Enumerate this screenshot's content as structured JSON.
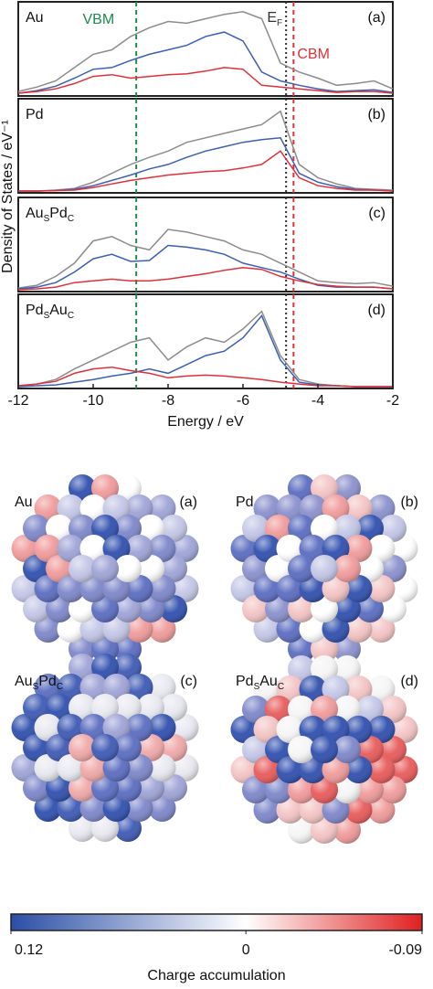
{
  "chart_data": [
    {
      "type": "line",
      "label": [
        {
          "text": "Au"
        }
      ],
      "panel": "(a)",
      "ylabel": "Density of States / eV⁻¹",
      "xlim": [
        -12,
        -2
      ],
      "ylim": [
        0,
        10
      ],
      "x": [
        -12,
        -11.5,
        -11,
        -10.5,
        -10,
        -9.5,
        -9,
        -8.5,
        -8,
        -7.5,
        -7,
        -6.5,
        -6,
        -5.5,
        -5,
        -4.5,
        -4,
        -3.5,
        -3,
        -2.5,
        -2
      ],
      "series": [
        {
          "color": "#8c8c8c",
          "values": [
            0.3,
            0.8,
            1.5,
            3,
            4.5,
            5,
            6.5,
            7.5,
            8.2,
            8,
            8.5,
            9,
            9.3,
            8.5,
            3.5,
            2.5,
            1.8,
            1,
            1.2,
            1.5,
            0.6
          ]
        },
        {
          "color": "#3a5fb5",
          "values": [
            0.1,
            0.4,
            0.9,
            1.8,
            2.8,
            3,
            3.8,
            4.5,
            5,
            5.5,
            6.5,
            7,
            6,
            2.5,
            1.5,
            1,
            0.6,
            0.3,
            0.4,
            0.5,
            0.2
          ]
        },
        {
          "color": "#e0303a",
          "values": [
            0.1,
            0.3,
            0.6,
            1.2,
            2,
            2.2,
            1.8,
            2,
            2.2,
            2.3,
            2.6,
            3,
            2.8,
            1,
            0.8,
            0.6,
            0.4,
            0.2,
            0.3,
            0.3,
            0.1
          ]
        }
      ],
      "vlines": [
        {
          "x": -8.85,
          "color": "#1f8a4c",
          "dash": "5,4",
          "label": [
            {
              "text": "VBM"
            }
          ]
        },
        {
          "x": -4.85,
          "color": "#333333",
          "dash": "2,3",
          "label": [
            {
              "text": "E"
            },
            {
              "text": "F",
              "sub": true
            }
          ]
        },
        {
          "x": -4.65,
          "color": "#e0303a",
          "dash": "5,4",
          "label": [
            {
              "text": "CBM"
            }
          ]
        }
      ]
    },
    {
      "type": "line",
      "label": [
        {
          "text": "Pd"
        }
      ],
      "panel": "(b)",
      "xlim": [
        -12,
        -2
      ],
      "ylim": [
        0,
        10
      ],
      "x": [
        -12,
        -11.5,
        -11,
        -10.5,
        -10,
        -9.5,
        -9,
        -8.5,
        -8,
        -7.5,
        -7,
        -6.5,
        -6,
        -5.5,
        -5,
        -4.5,
        -4,
        -3.5,
        -3,
        -2.5,
        -2
      ],
      "series": [
        {
          "color": "#8c8c8c",
          "values": [
            0,
            0,
            0.1,
            0.3,
            1,
            2,
            3,
            3.8,
            4.5,
            5.5,
            6,
            6.5,
            7,
            7.5,
            9,
            3,
            1.5,
            0.8,
            0.3,
            0.2,
            0.1
          ]
        },
        {
          "color": "#3a5fb5",
          "values": [
            0,
            0,
            0.05,
            0.2,
            0.6,
            1.2,
            1.8,
            2.5,
            3,
            3.8,
            4.5,
            5,
            5.5,
            5.8,
            6,
            2,
            1,
            0.5,
            0.2,
            0.1,
            0
          ]
        },
        {
          "color": "#e0303a",
          "values": [
            0,
            0,
            0.05,
            0.1,
            0.4,
            0.8,
            1.2,
            1.5,
            1.8,
            2,
            2.2,
            2.3,
            2.6,
            3,
            4.5,
            1.5,
            0.6,
            0.3,
            0.1,
            0.1,
            0
          ]
        }
      ],
      "vlines": [
        {
          "x": -8.85,
          "color": "#1f8a4c",
          "dash": "5,4"
        },
        {
          "x": -4.85,
          "color": "#333333",
          "dash": "2,3"
        },
        {
          "x": -4.65,
          "color": "#e0303a",
          "dash": "5,4"
        }
      ]
    },
    {
      "type": "line",
      "label": [
        {
          "text": "Au"
        },
        {
          "text": "S",
          "sub": true
        },
        {
          "text": "Pd"
        },
        {
          "text": "C",
          "sub": true
        }
      ],
      "panel": "(c)",
      "xlim": [
        -12,
        -2
      ],
      "ylim": [
        0,
        10
      ],
      "x": [
        -12,
        -11.5,
        -11,
        -10.5,
        -10,
        -9.5,
        -9,
        -8.5,
        -8,
        -7.5,
        -7,
        -6.5,
        -6,
        -5.5,
        -5,
        -4.5,
        -4,
        -3.5,
        -3,
        -2.5,
        -2
      ],
      "series": [
        {
          "color": "#8c8c8c",
          "values": [
            0.2,
            0.5,
            1.5,
            3,
            5.5,
            6,
            5,
            4.5,
            6.8,
            6.5,
            6,
            5.5,
            4.5,
            4,
            3,
            2,
            1,
            0.8,
            0.7,
            0.8,
            0.4
          ]
        },
        {
          "color": "#3a5fb5",
          "values": [
            0.1,
            0.3,
            0.8,
            2,
            3.5,
            4,
            3.2,
            3.3,
            5,
            4.8,
            4.5,
            4,
            3,
            2.5,
            2,
            1.2,
            0.5,
            0.3,
            0.3,
            0.3,
            0.1
          ]
        },
        {
          "color": "#e0303a",
          "values": [
            0,
            0.1,
            0.3,
            0.8,
            1,
            1.2,
            1,
            1,
            1.2,
            1.5,
            1.8,
            2.2,
            2.5,
            2.3,
            1.5,
            1,
            0.6,
            0.4,
            0.3,
            0.3,
            0.1
          ]
        }
      ],
      "vlines": [
        {
          "x": -8.85,
          "color": "#1f8a4c",
          "dash": "5,4"
        },
        {
          "x": -4.85,
          "color": "#333333",
          "dash": "2,3"
        },
        {
          "x": -4.65,
          "color": "#e0303a",
          "dash": "5,4"
        }
      ]
    },
    {
      "type": "line",
      "label": [
        {
          "text": "Pd"
        },
        {
          "text": "S",
          "sub": true
        },
        {
          "text": "Au"
        },
        {
          "text": "C",
          "sub": true
        }
      ],
      "panel": "(d)",
      "xlim": [
        -12,
        -2
      ],
      "ylim": [
        0,
        10
      ],
      "xticks": [
        -12,
        -10,
        -8,
        -6,
        -4,
        -2
      ],
      "xlabel": "Energy / eV",
      "x": [
        -12,
        -11.5,
        -11,
        -10.5,
        -10,
        -9.5,
        -9,
        -8.5,
        -8,
        -7.5,
        -7,
        -6.5,
        -6,
        -5.5,
        -5,
        -4.5,
        -4,
        -3.5,
        -3,
        -2.5,
        -2
      ],
      "series": [
        {
          "color": "#8c8c8c",
          "values": [
            0.1,
            0.3,
            0.8,
            2,
            3,
            4,
            5,
            5.5,
            3,
            4.5,
            5.5,
            5,
            6.5,
            8.5,
            3.5,
            0.8,
            0.3,
            0.1,
            0,
            0,
            0
          ]
        },
        {
          "color": "#3a5fb5",
          "values": [
            0,
            0.1,
            0.2,
            0.5,
            0.8,
            1.2,
            1.5,
            2,
            1.5,
            2.5,
            3.5,
            4,
            5.5,
            8,
            3,
            0.5,
            0.2,
            0.1,
            0,
            0,
            0
          ]
        },
        {
          "color": "#e0303a",
          "values": [
            0.1,
            0.3,
            0.6,
            1.5,
            2,
            2.2,
            1.8,
            1.5,
            1,
            1.2,
            1.3,
            1.2,
            1,
            0.8,
            0.5,
            0.3,
            0.1,
            0.1,
            0,
            0,
            0
          ]
        }
      ],
      "vlines": [
        {
          "x": -8.85,
          "color": "#1f8a4c",
          "dash": "5,4"
        },
        {
          "x": -4.85,
          "color": "#333333",
          "dash": "2,3"
        },
        {
          "x": -4.65,
          "color": "#e0303a",
          "dash": "5,4"
        }
      ]
    },
    {
      "type": "colorbar",
      "xlim": [
        0.12,
        -0.09
      ],
      "xticks": [
        0.12,
        0,
        -0.09
      ],
      "xlabel": "Charge accumulation",
      "colors": [
        "#2b4ea6",
        "#ffffff",
        "#e02020"
      ]
    }
  ],
  "clusters": [
    {
      "label": [
        {
          "text": "Au"
        }
      ],
      "panel": "(a)"
    },
    {
      "label": [
        {
          "text": "Pd"
        }
      ],
      "panel": "(b)"
    },
    {
      "label": [
        {
          "text": "Au"
        },
        {
          "text": "S",
          "sub": true
        },
        {
          "text": "Pd"
        },
        {
          "text": "C",
          "sub": true
        }
      ],
      "panel": "(c)"
    },
    {
      "label": [
        {
          "text": "Pd"
        },
        {
          "text": "S",
          "sub": true
        },
        {
          "text": "Au"
        },
        {
          "text": "C",
          "sub": true
        }
      ],
      "panel": "(d)"
    }
  ]
}
